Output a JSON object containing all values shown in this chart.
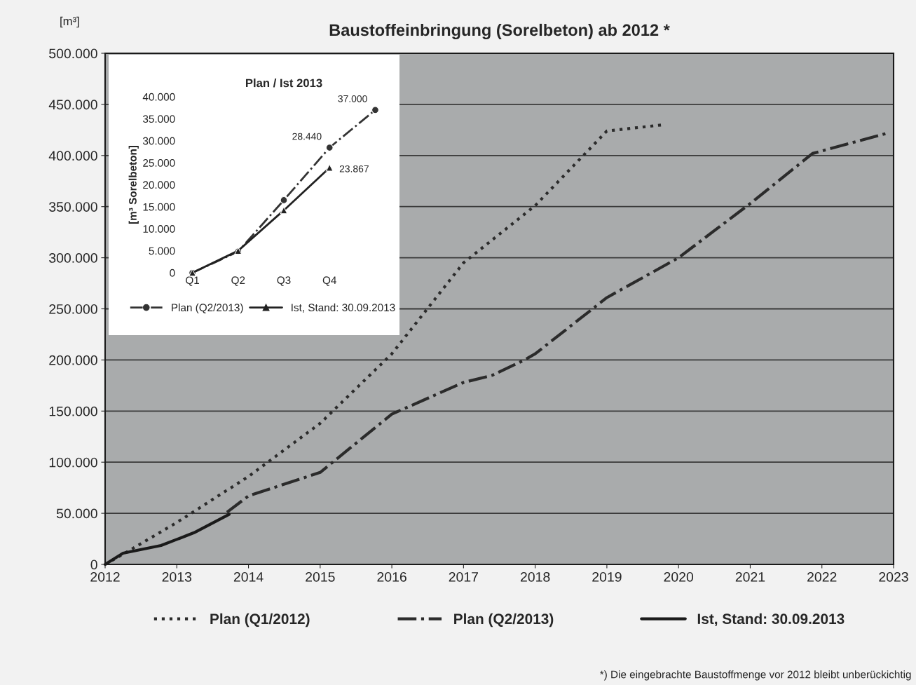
{
  "chart_data": [
    {
      "type": "line",
      "title": "Baustoffeinbringung (Sorelbeton) ab 2012 *",
      "ylabel": "[m³]",
      "xlim": [
        2012,
        2023
      ],
      "xticks": [
        2012,
        2013,
        2014,
        2015,
        2016,
        2017,
        2018,
        2019,
        2020,
        2021,
        2022,
        2023
      ],
      "ylim": [
        0,
        500000
      ],
      "yticks": [
        {
          "value": 0,
          "label": "0"
        },
        {
          "value": 50000,
          "label": "50.000"
        },
        {
          "value": 100000,
          "label": "100.000"
        },
        {
          "value": 150000,
          "label": "150.000"
        },
        {
          "value": 200000,
          "label": "200.000"
        },
        {
          "value": 250000,
          "label": "250.000"
        },
        {
          "value": 300000,
          "label": "300.000"
        },
        {
          "value": 350000,
          "label": "350.000"
        },
        {
          "value": 400000,
          "label": "400.000"
        },
        {
          "value": 450000,
          "label": "450.000"
        },
        {
          "value": 500000,
          "label": "500.000"
        }
      ],
      "grid": "y",
      "legend": "bottom",
      "series": [
        {
          "name": "Plan (Q1/2012)",
          "color": "#2b2b2b",
          "line_style": "dotted",
          "x": [
            2012,
            2012.25,
            2013,
            2014,
            2015,
            2016,
            2017,
            2018,
            2019,
            2019.78
          ],
          "values": [
            0,
            10000,
            41000,
            86000,
            138000,
            206000,
            295000,
            351000,
            424000,
            430000
          ]
        },
        {
          "name": "Plan (Q2/2013)",
          "color": "#2b2b2b",
          "line_style": "dashdot",
          "x": [
            2013.7,
            2014,
            2015,
            2016,
            2017,
            2017.4,
            2017.85,
            2018,
            2019,
            2020,
            2021,
            2021.87,
            2022.92
          ],
          "values": [
            51000,
            67000,
            90000,
            147000,
            178000,
            185000,
            200000,
            206000,
            261000,
            300000,
            353000,
            402000,
            422000
          ]
        },
        {
          "name": "Ist, Stand: 30.09.2013",
          "color": "#1a1a1a",
          "line_style": "solid",
          "x": [
            2012,
            2012.25,
            2012.78,
            2013.24,
            2013.73
          ],
          "values": [
            0,
            11000,
            18500,
            31000,
            49000
          ]
        }
      ],
      "annotations": [
        "*) Die eingebrachte Baustoffmenge vor 2012 bleibt unberückichtig"
      ]
    },
    {
      "type": "line",
      "title": "Plan / Ist 2013",
      "ylabel": "[m³ Sorelbeton]",
      "categories": [
        "Q1",
        "Q2",
        "Q3",
        "Q4",
        null
      ],
      "ylim": [
        0,
        40000
      ],
      "yticks": [
        {
          "value": 0,
          "label": "0"
        },
        {
          "value": 5000,
          "label": "5.000"
        },
        {
          "value": 10000,
          "label": "10.000"
        },
        {
          "value": 15000,
          "label": "15.000"
        },
        {
          "value": 20000,
          "label": "20.000"
        },
        {
          "value": 25000,
          "label": "25.000"
        },
        {
          "value": 30000,
          "label": "30.000"
        },
        {
          "value": 35000,
          "label": "35.000"
        },
        {
          "value": 40000,
          "label": "40.000"
        }
      ],
      "legend": "bottom",
      "series": [
        {
          "name": "Plan (Q2/2013)",
          "color": "#333333",
          "line_style": "dashdot",
          "marker": "circle",
          "values": [
            0,
            4800,
            16500,
            28440,
            37000
          ],
          "value_labels": [
            null,
            null,
            null,
            "28.440",
            "37.000"
          ]
        },
        {
          "name": "Ist, Stand: 30.09.2013",
          "color": "#222222",
          "line_style": "solid",
          "marker": "triangle",
          "values": [
            0,
            5000,
            14200,
            23867,
            null
          ],
          "value_labels": [
            null,
            null,
            null,
            "23.867",
            null
          ]
        }
      ]
    }
  ]
}
